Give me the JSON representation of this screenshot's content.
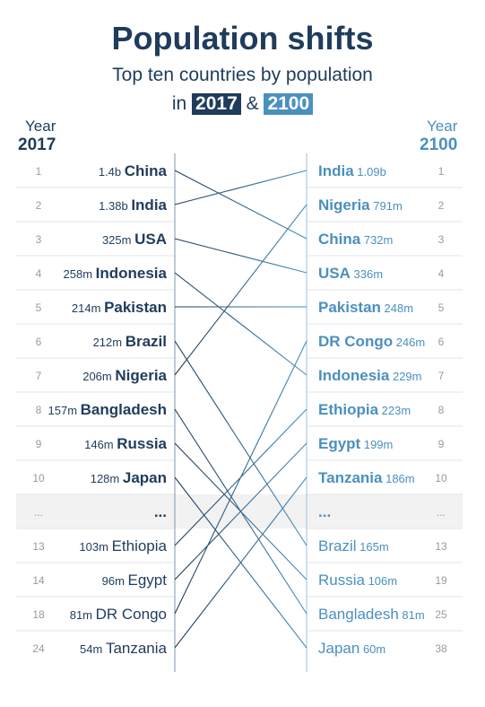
{
  "title": "Population shifts",
  "subtitle": "Top ten countries by population",
  "subline": {
    "prefix": "in",
    "year_a": "2017",
    "amp": "&",
    "year_b": "2100"
  },
  "columns": {
    "left": {
      "label": "Year",
      "year": "2017"
    },
    "right": {
      "label": "Year",
      "year": "2100"
    }
  },
  "colors": {
    "dark": "#1f3c5c",
    "light": "#4a90bf",
    "rank": "#9a9a9a",
    "row_line": "#e4e4e4",
    "gap": "#f2f2f2"
  },
  "chart_data": {
    "type": "slope",
    "title": "Population shifts",
    "subtitle": "Top ten countries by population",
    "ellipsis": "...",
    "left": [
      {
        "rank": "1",
        "value": "1.4b",
        "country": "China"
      },
      {
        "rank": "2",
        "value": "1.38b",
        "country": "India"
      },
      {
        "rank": "3",
        "value": "325m",
        "country": "USA"
      },
      {
        "rank": "4",
        "value": "258m",
        "country": "Indonesia"
      },
      {
        "rank": "5",
        "value": "214m",
        "country": "Pakistan"
      },
      {
        "rank": "6",
        "value": "212m",
        "country": "Brazil"
      },
      {
        "rank": "7",
        "value": "206m",
        "country": "Nigeria"
      },
      {
        "rank": "8",
        "value": "157m",
        "country": "Bangladesh"
      },
      {
        "rank": "9",
        "value": "146m",
        "country": "Russia"
      },
      {
        "rank": "10",
        "value": "128m",
        "country": "Japan"
      },
      {
        "rank": "...",
        "value": "",
        "country": "..."
      },
      {
        "rank": "13",
        "value": "103m",
        "country": "Ethiopia"
      },
      {
        "rank": "14",
        "value": "96m",
        "country": "Egypt"
      },
      {
        "rank": "18",
        "value": "81m",
        "country": "DR Congo"
      },
      {
        "rank": "24",
        "value": "54m",
        "country": "Tanzania"
      }
    ],
    "right": [
      {
        "rank": "1",
        "value": "1.09b",
        "country": "India"
      },
      {
        "rank": "2",
        "value": "791m",
        "country": "Nigeria"
      },
      {
        "rank": "3",
        "value": "732m",
        "country": "China"
      },
      {
        "rank": "4",
        "value": "336m",
        "country": "USA"
      },
      {
        "rank": "5",
        "value": "248m",
        "country": "Pakistan"
      },
      {
        "rank": "6",
        "value": "246m",
        "country": "DR Congo"
      },
      {
        "rank": "7",
        "value": "229m",
        "country": "Indonesia"
      },
      {
        "rank": "8",
        "value": "223m",
        "country": "Ethiopia"
      },
      {
        "rank": "9",
        "value": "199m",
        "country": "Egypt"
      },
      {
        "rank": "10",
        "value": "186m",
        "country": "Tanzania"
      },
      {
        "rank": "...",
        "value": "",
        "country": "..."
      },
      {
        "rank": "13",
        "value": "165m",
        "country": "Brazil"
      },
      {
        "rank": "19",
        "value": "106m",
        "country": "Russia"
      },
      {
        "rank": "25",
        "value": "81m",
        "country": "Bangladesh"
      },
      {
        "rank": "38",
        "value": "60m",
        "country": "Japan"
      }
    ]
  }
}
